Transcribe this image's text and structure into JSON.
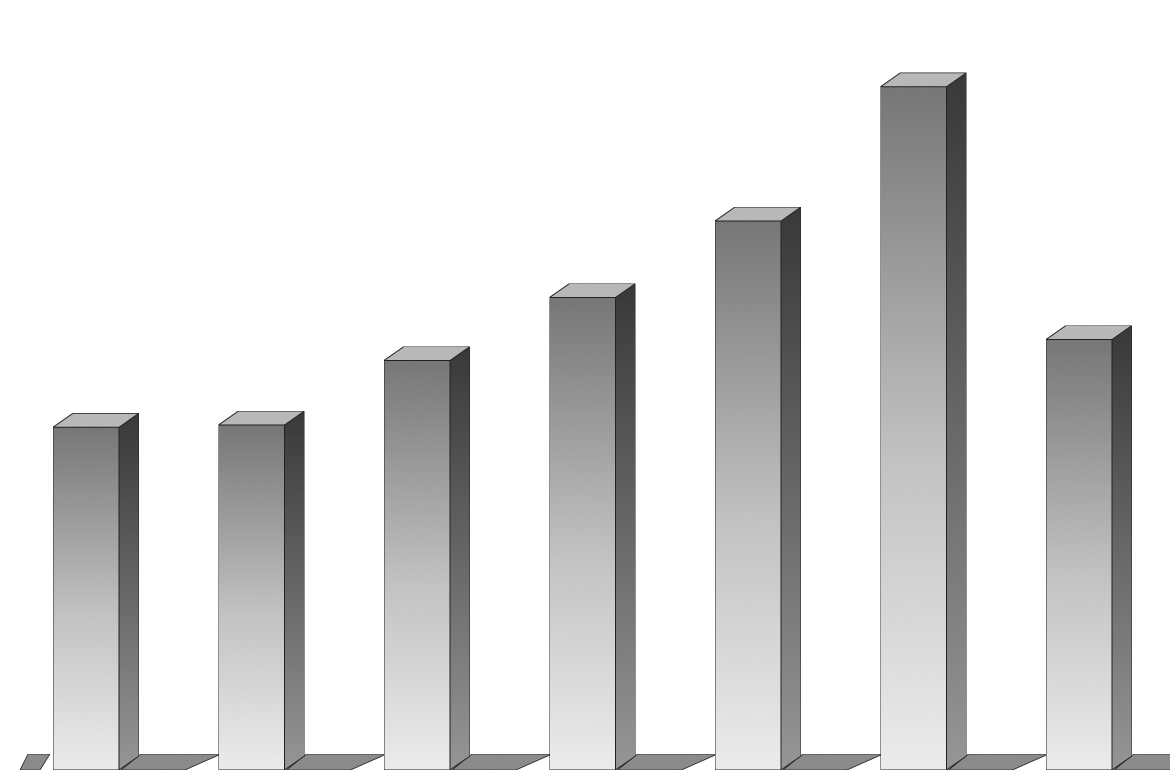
{
  "chart_data": {
    "type": "bar",
    "style": "3d-columns",
    "categories": [
      "",
      "",
      "",
      "",
      "",
      "",
      ""
    ],
    "values": [
      45.7,
      46.0,
      54.6,
      63.0,
      73.2,
      91.1,
      57.4
    ],
    "title": "",
    "xlabel": "",
    "ylabel": "",
    "ylim": [
      0,
      100
    ],
    "grid": false,
    "legend": "none",
    "colors": {
      "front_dark": "#7a7a7a",
      "front_mid": "#c8c8c8",
      "front_light": "#f2f2f2",
      "side_dark": "#3a3a3a",
      "side_light": "#9a9a9a",
      "top": "#bdbdbd",
      "shadow": "#8f8f8f",
      "outline": "#222222"
    }
  }
}
